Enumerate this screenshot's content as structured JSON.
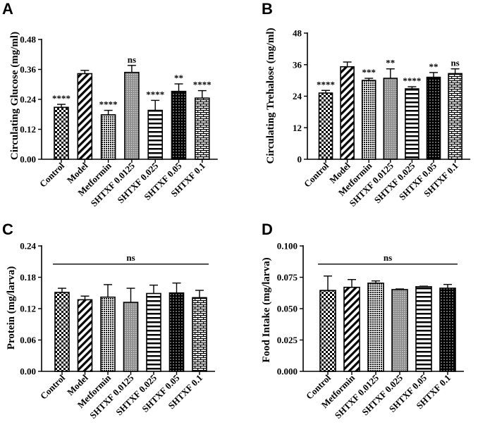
{
  "chart_data": [
    {
      "type": "bar",
      "panel": "A",
      "ylabel": "Circulating Glucose (mg/ml)",
      "categories": [
        "Control",
        "Model",
        "Metformin",
        "SHTXF 0.0125",
        "SHTXF 0.025",
        "SHTXF 0.05",
        "SHTXF 0.1"
      ],
      "values": [
        0.208,
        0.343,
        0.178,
        0.348,
        0.196,
        0.272,
        0.245
      ],
      "errors": [
        0.012,
        0.013,
        0.018,
        0.028,
        0.04,
        0.03,
        0.03
      ],
      "significance": [
        "****",
        "",
        "****",
        "ns",
        "****",
        "**",
        "****"
      ],
      "patterns": [
        "checker",
        "diag",
        "dots",
        "grid",
        "hlines",
        "dark",
        "brick"
      ],
      "ylim": [
        0,
        0.48
      ],
      "yticks": [
        "0.00",
        "0.12",
        "0.24",
        "0.36",
        "0.48"
      ],
      "group_significance": ""
    },
    {
      "type": "bar",
      "panel": "B",
      "ylabel": "Circulating Trehalose (mg/ml)",
      "categories": [
        "Control",
        "Model",
        "Metformin",
        "SHTXF 0.0125",
        "SHTXF 0.025",
        "SHTXF 0.05",
        "SHTXF 0.1"
      ],
      "values": [
        25.2,
        35.2,
        30.0,
        30.8,
        26.8,
        31.2,
        32.6
      ],
      "errors": [
        1.0,
        1.8,
        0.8,
        3.6,
        0.8,
        1.8,
        1.8
      ],
      "significance": [
        "****",
        "",
        "***",
        "**",
        "****",
        "**",
        "ns"
      ],
      "patterns": [
        "checker",
        "diag",
        "dots",
        "grid",
        "hlines",
        "dark",
        "brick"
      ],
      "ylim": [
        0,
        48
      ],
      "yticks": [
        "0",
        "12",
        "24",
        "36",
        "48"
      ],
      "group_significance": ""
    },
    {
      "type": "bar",
      "panel": "C",
      "ylabel": "Protein (mg/larva)",
      "categories": [
        "Control",
        "Model",
        "Metformin",
        "SHTXF 0.0125",
        "SHTXF 0.025",
        "SHTXF 0.05",
        "SHTXF 0.1"
      ],
      "values": [
        0.151,
        0.137,
        0.142,
        0.132,
        0.149,
        0.15,
        0.141
      ],
      "errors": [
        0.008,
        0.007,
        0.024,
        0.027,
        0.016,
        0.019,
        0.014
      ],
      "significance": [
        "",
        "",
        "",
        "",
        "",
        "",
        ""
      ],
      "patterns": [
        "checker",
        "diag",
        "dots",
        "grid",
        "hlines",
        "dark",
        "brick"
      ],
      "ylim": [
        0,
        0.24
      ],
      "yticks": [
        "0.00",
        "0.06",
        "0.12",
        "0.18",
        "0.24"
      ],
      "group_significance": "ns"
    },
    {
      "type": "bar",
      "panel": "D",
      "ylabel": "Food Intake (mg/larva)",
      "categories": [
        "Control",
        "Metformin",
        "SHTXF 0.0125",
        "SHTXF 0.025",
        "SHTXF 0.05",
        "SHTXF 0.1"
      ],
      "values": [
        0.0645,
        0.067,
        0.0703,
        0.0652,
        0.0675,
        0.0663
      ],
      "errors": [
        0.0115,
        0.0062,
        0.0018,
        0.0005,
        0.0004,
        0.003
      ],
      "significance": [
        "",
        "",
        "",
        "",
        "",
        ""
      ],
      "patterns": [
        "checker",
        "diag",
        "dots",
        "grid",
        "hlines",
        "dark"
      ],
      "ylim": [
        0,
        0.1
      ],
      "yticks": [
        "0.000",
        "0.025",
        "0.050",
        "0.075",
        "0.100"
      ],
      "group_significance": "ns"
    }
  ]
}
